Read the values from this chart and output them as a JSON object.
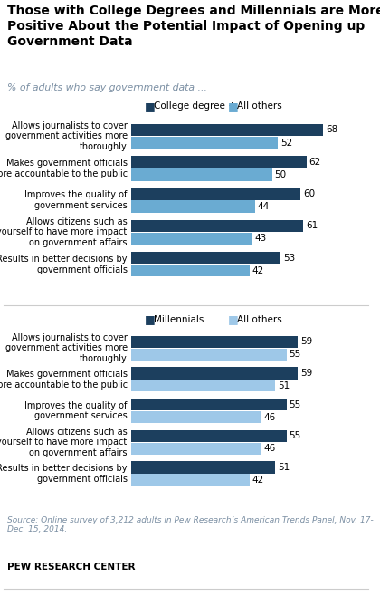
{
  "title": "Those with College Degrees and Millennials are More\nPositive About the Potential Impact of Opening up\nGovernment Data",
  "subtitle": "% of adults who say government data ...",
  "section1_legend": [
    "College degree +",
    "All others"
  ],
  "section2_legend": [
    "Millennials",
    "All others"
  ],
  "categories": [
    "Allows journalists to cover\ngovernment activities more\nthoroughly",
    "Makes government officials\nmore accountable to the public",
    "Improves the quality of\ngovernment services",
    "Allows citizens such as\nyourself to have more impact\non government affairs",
    "Results in better decisions by\ngovernment officials"
  ],
  "section1_dark": [
    68,
    62,
    60,
    61,
    53
  ],
  "section1_light": [
    52,
    50,
    44,
    43,
    42
  ],
  "section2_dark": [
    59,
    59,
    55,
    55,
    51
  ],
  "section2_light": [
    55,
    51,
    46,
    46,
    42
  ],
  "color_dark1": "#1c3f5e",
  "color_light1": "#6aabd2",
  "color_dark2": "#1c3f5e",
  "color_light2": "#9ec8e8",
  "source": "Source: Online survey of 3,212 adults in Pew Research’s American Trends Panel, Nov. 17-\nDec. 15, 2014.",
  "footer": "PEW RESEARCH CENTER",
  "xlim": [
    0,
    80
  ],
  "bar_height": 0.38
}
